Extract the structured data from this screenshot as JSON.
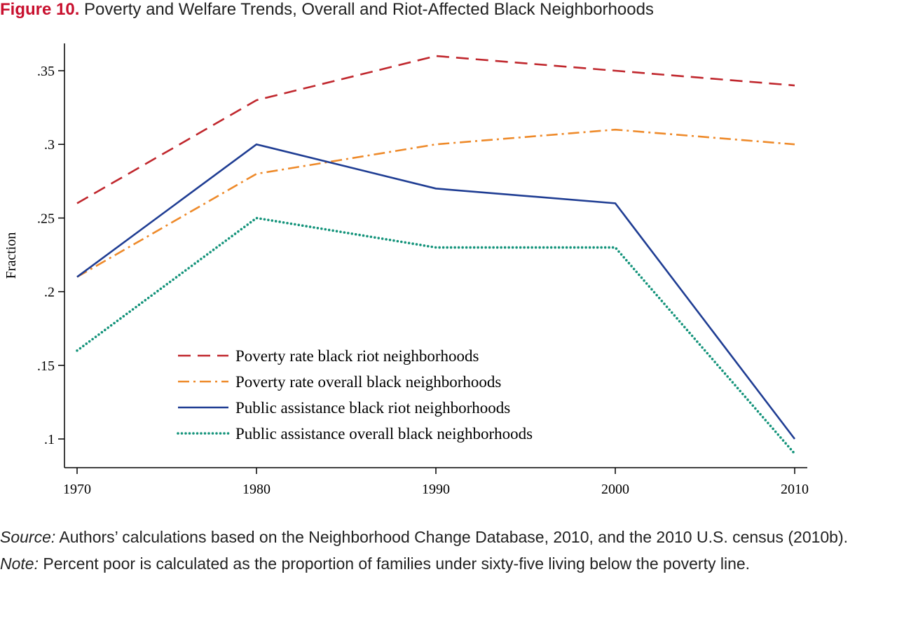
{
  "figure": {
    "label": "Figure 10.",
    "title": "Poverty and Welfare Trends, Overall and Riot-Affected Black Neighborhoods"
  },
  "chart_data": {
    "type": "line",
    "x": [
      1970,
      1980,
      1990,
      2000,
      2010
    ],
    "xticks": [
      "1970",
      "1980",
      "1990",
      "2000",
      "2010"
    ],
    "ylabel": "Fraction",
    "xlabel": "",
    "yticks": [
      {
        "value": 0.1,
        "label": ".1"
      },
      {
        "value": 0.15,
        "label": ".15"
      },
      {
        "value": 0.2,
        "label": ".2"
      },
      {
        "value": 0.25,
        "label": ".25"
      },
      {
        "value": 0.3,
        "label": ".3"
      },
      {
        "value": 0.35,
        "label": ".35"
      }
    ],
    "xlim": [
      1970,
      2010
    ],
    "ylim": [
      0.08,
      0.37
    ],
    "grid": false,
    "legend_position": "bottom-center inside",
    "series": [
      {
        "name": "Poverty rate black riot neighborhoods",
        "values": [
          0.26,
          0.33,
          0.36,
          0.35,
          0.34
        ],
        "color": "#c0272d",
        "style": "dashed"
      },
      {
        "name": "Poverty rate overall black neighborhoods",
        "values": [
          0.21,
          0.28,
          0.3,
          0.31,
          0.3
        ],
        "color": "#ee8a2a",
        "style": "dash-dot"
      },
      {
        "name": "Public assistance black riot neighborhoods",
        "values": [
          0.21,
          0.3,
          0.27,
          0.26,
          0.1
        ],
        "color": "#1f3d93",
        "style": "solid"
      },
      {
        "name": "Public assistance overall black neighborhoods",
        "values": [
          0.16,
          0.25,
          0.23,
          0.23,
          0.09
        ],
        "color": "#13937a",
        "style": "dotted"
      }
    ]
  },
  "footer": {
    "source_label": "Source:",
    "source_text": " Authors’ calculations based on the Neighborhood Change Database, 2010, and the 2010 U.S. census (2010b).",
    "note_label": "Note:",
    "note_text": " Percent poor is calculated as the proportion of families under sixty-five living below the poverty line."
  }
}
